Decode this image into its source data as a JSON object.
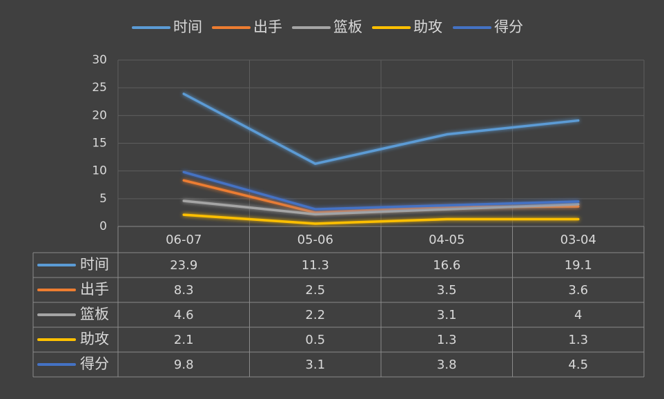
{
  "chart_data": {
    "type": "line",
    "categories": [
      "06-07",
      "05-06",
      "04-05",
      "03-04"
    ],
    "series": [
      {
        "name": "时间",
        "color": "#5b9bd5",
        "values": [
          23.9,
          11.3,
          16.6,
          19.1
        ]
      },
      {
        "name": "出手",
        "color": "#ed7d31",
        "values": [
          8.3,
          2.5,
          3.5,
          3.6
        ]
      },
      {
        "name": "篮板",
        "color": "#a5a5a5",
        "values": [
          4.6,
          2.2,
          3.1,
          4
        ]
      },
      {
        "name": "助攻",
        "color": "#ffc000",
        "values": [
          2.1,
          0.5,
          1.3,
          1.3
        ]
      },
      {
        "name": "得分",
        "color": "#4472c4",
        "values": [
          9.8,
          3.1,
          3.8,
          4.5
        ]
      }
    ],
    "ylim": [
      0,
      30
    ],
    "yticks": [
      0,
      5,
      10,
      15,
      20,
      25,
      30
    ],
    "grid": true,
    "legend": "top",
    "data_table": true
  }
}
